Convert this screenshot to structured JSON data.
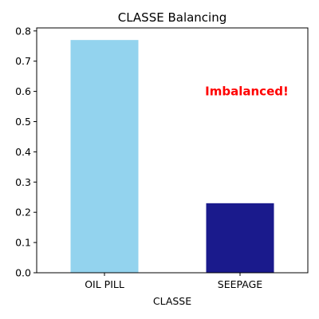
{
  "chart_data": {
    "type": "bar",
    "title": "CLASSE Balancing",
    "xlabel": "CLASSE",
    "ylabel": "",
    "categories": [
      "OIL PILL",
      "SEEPAGE"
    ],
    "values": [
      0.77,
      0.23
    ],
    "colors": [
      "#93d3ee",
      "#1a1a8c"
    ],
    "ylim": [
      0,
      0.81
    ],
    "yticks": [
      {
        "value": 0.0,
        "label": "0.0"
      },
      {
        "value": 0.1,
        "label": "0.1"
      },
      {
        "value": 0.2,
        "label": "0.2"
      },
      {
        "value": 0.3,
        "label": "0.3"
      },
      {
        "value": 0.4,
        "label": "0.4"
      },
      {
        "value": 0.5,
        "label": "0.5"
      },
      {
        "value": 0.6,
        "label": "0.6"
      },
      {
        "value": 0.7,
        "label": "0.7"
      },
      {
        "value": 0.8,
        "label": "0.8"
      }
    ],
    "annotation": {
      "text": "Imbalanced!",
      "color": "#ff0000",
      "x": 1.05,
      "y": 0.6
    },
    "grid": false,
    "legend": "none"
  }
}
